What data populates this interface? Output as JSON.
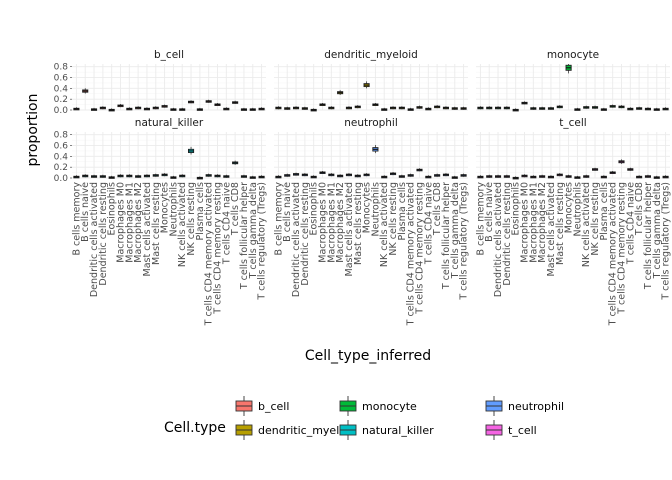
{
  "chart_data": {
    "type": "boxplot-facet",
    "xlabel": "Cell_type_inferred",
    "ylabel": "proportion",
    "ylim": [
      0,
      0.85
    ],
    "yticks": [
      0.0,
      0.2,
      0.4,
      0.6,
      0.8
    ],
    "ytick_labels": [
      "0.0",
      "0.2",
      "0.4",
      "0.6",
      "0.8"
    ],
    "categories": [
      "B cells memory",
      "B cells naive",
      "Dendritic cells activated",
      "Dendritic cells resting",
      "Eosinophils",
      "Macrophages M0",
      "Macrophages M1",
      "Macrophages M2",
      "Mast cells activated",
      "Mast cells resting",
      "Monocytes",
      "Neutrophils",
      "NK cells activated",
      "NK cells resting",
      "Plasma cells",
      "T cells CD4 memory activated",
      "T cells CD4 memory resting",
      "T cells CD4 naive",
      "T cells CD8",
      "T cells follicular helper",
      "T cells gamma delta",
      "T cells regulatory (Tregs)"
    ],
    "legend_title": "Cell.type",
    "legend": [
      {
        "name": "b_cell",
        "color": "#F8766D"
      },
      {
        "name": "dendritic_myeloid",
        "color": "#B79F00"
      },
      {
        "name": "monocyte",
        "color": "#00BA38"
      },
      {
        "name": "natural_killer",
        "color": "#00BFC4"
      },
      {
        "name": "neutrophil",
        "color": "#619CFF"
      },
      {
        "name": "t_cell",
        "color": "#F564E3"
      }
    ],
    "facets": [
      {
        "label": "b_cell",
        "color": "#F8766D",
        "values": [
          0.02,
          0.35,
          0.01,
          0.04,
          0.0,
          0.08,
          0.02,
          0.04,
          0.02,
          0.04,
          0.07,
          0.01,
          0.01,
          0.15,
          0.01,
          0.16,
          0.1,
          0.02,
          0.14,
          0.01,
          0.01,
          0.02
        ]
      },
      {
        "label": "dendritic_myeloid",
        "color": "#B79F00",
        "values": [
          0.04,
          0.03,
          0.04,
          0.03,
          0.0,
          0.1,
          0.04,
          0.32,
          0.04,
          0.06,
          0.46,
          0.1,
          0.01,
          0.04,
          0.04,
          0.01,
          0.05,
          0.02,
          0.06,
          0.04,
          0.03,
          0.03
        ]
      },
      {
        "label": "monocyte",
        "color": "#00BA38",
        "values": [
          0.04,
          0.04,
          0.04,
          0.04,
          0.0,
          0.13,
          0.03,
          0.03,
          0.03,
          0.06,
          0.78,
          0.01,
          0.05,
          0.05,
          0.01,
          0.07,
          0.06,
          0.02,
          0.03,
          0.02,
          0.01,
          0.02
        ]
      },
      {
        "label": "natural_killer",
        "color": "#00BFC4",
        "values": [
          0.02,
          0.04,
          0.03,
          0.03,
          0.01,
          0.04,
          0.04,
          0.03,
          0.04,
          0.05,
          0.06,
          0.01,
          0.04,
          0.5,
          0.0,
          0.05,
          0.04,
          0.03,
          0.28,
          0.03,
          0.01,
          0.02
        ]
      },
      {
        "label": "neutrophil",
        "color": "#619CFF",
        "values": [
          0.02,
          0.05,
          0.07,
          0.06,
          0.02,
          0.1,
          0.06,
          0.04,
          0.06,
          0.04,
          0.06,
          0.53,
          0.02,
          0.08,
          0.03,
          0.05,
          0.15,
          0.02,
          0.05,
          0.06,
          0.01,
          0.05
        ]
      },
      {
        "label": "t_cell",
        "color": "#F564E3",
        "values": [
          0.02,
          0.03,
          0.03,
          0.03,
          0.0,
          0.04,
          0.02,
          0.03,
          0.02,
          0.06,
          0.03,
          0.01,
          0.03,
          0.16,
          0.02,
          0.1,
          0.3,
          0.16,
          0.02,
          0.03,
          0.01,
          0.02
        ]
      }
    ]
  }
}
